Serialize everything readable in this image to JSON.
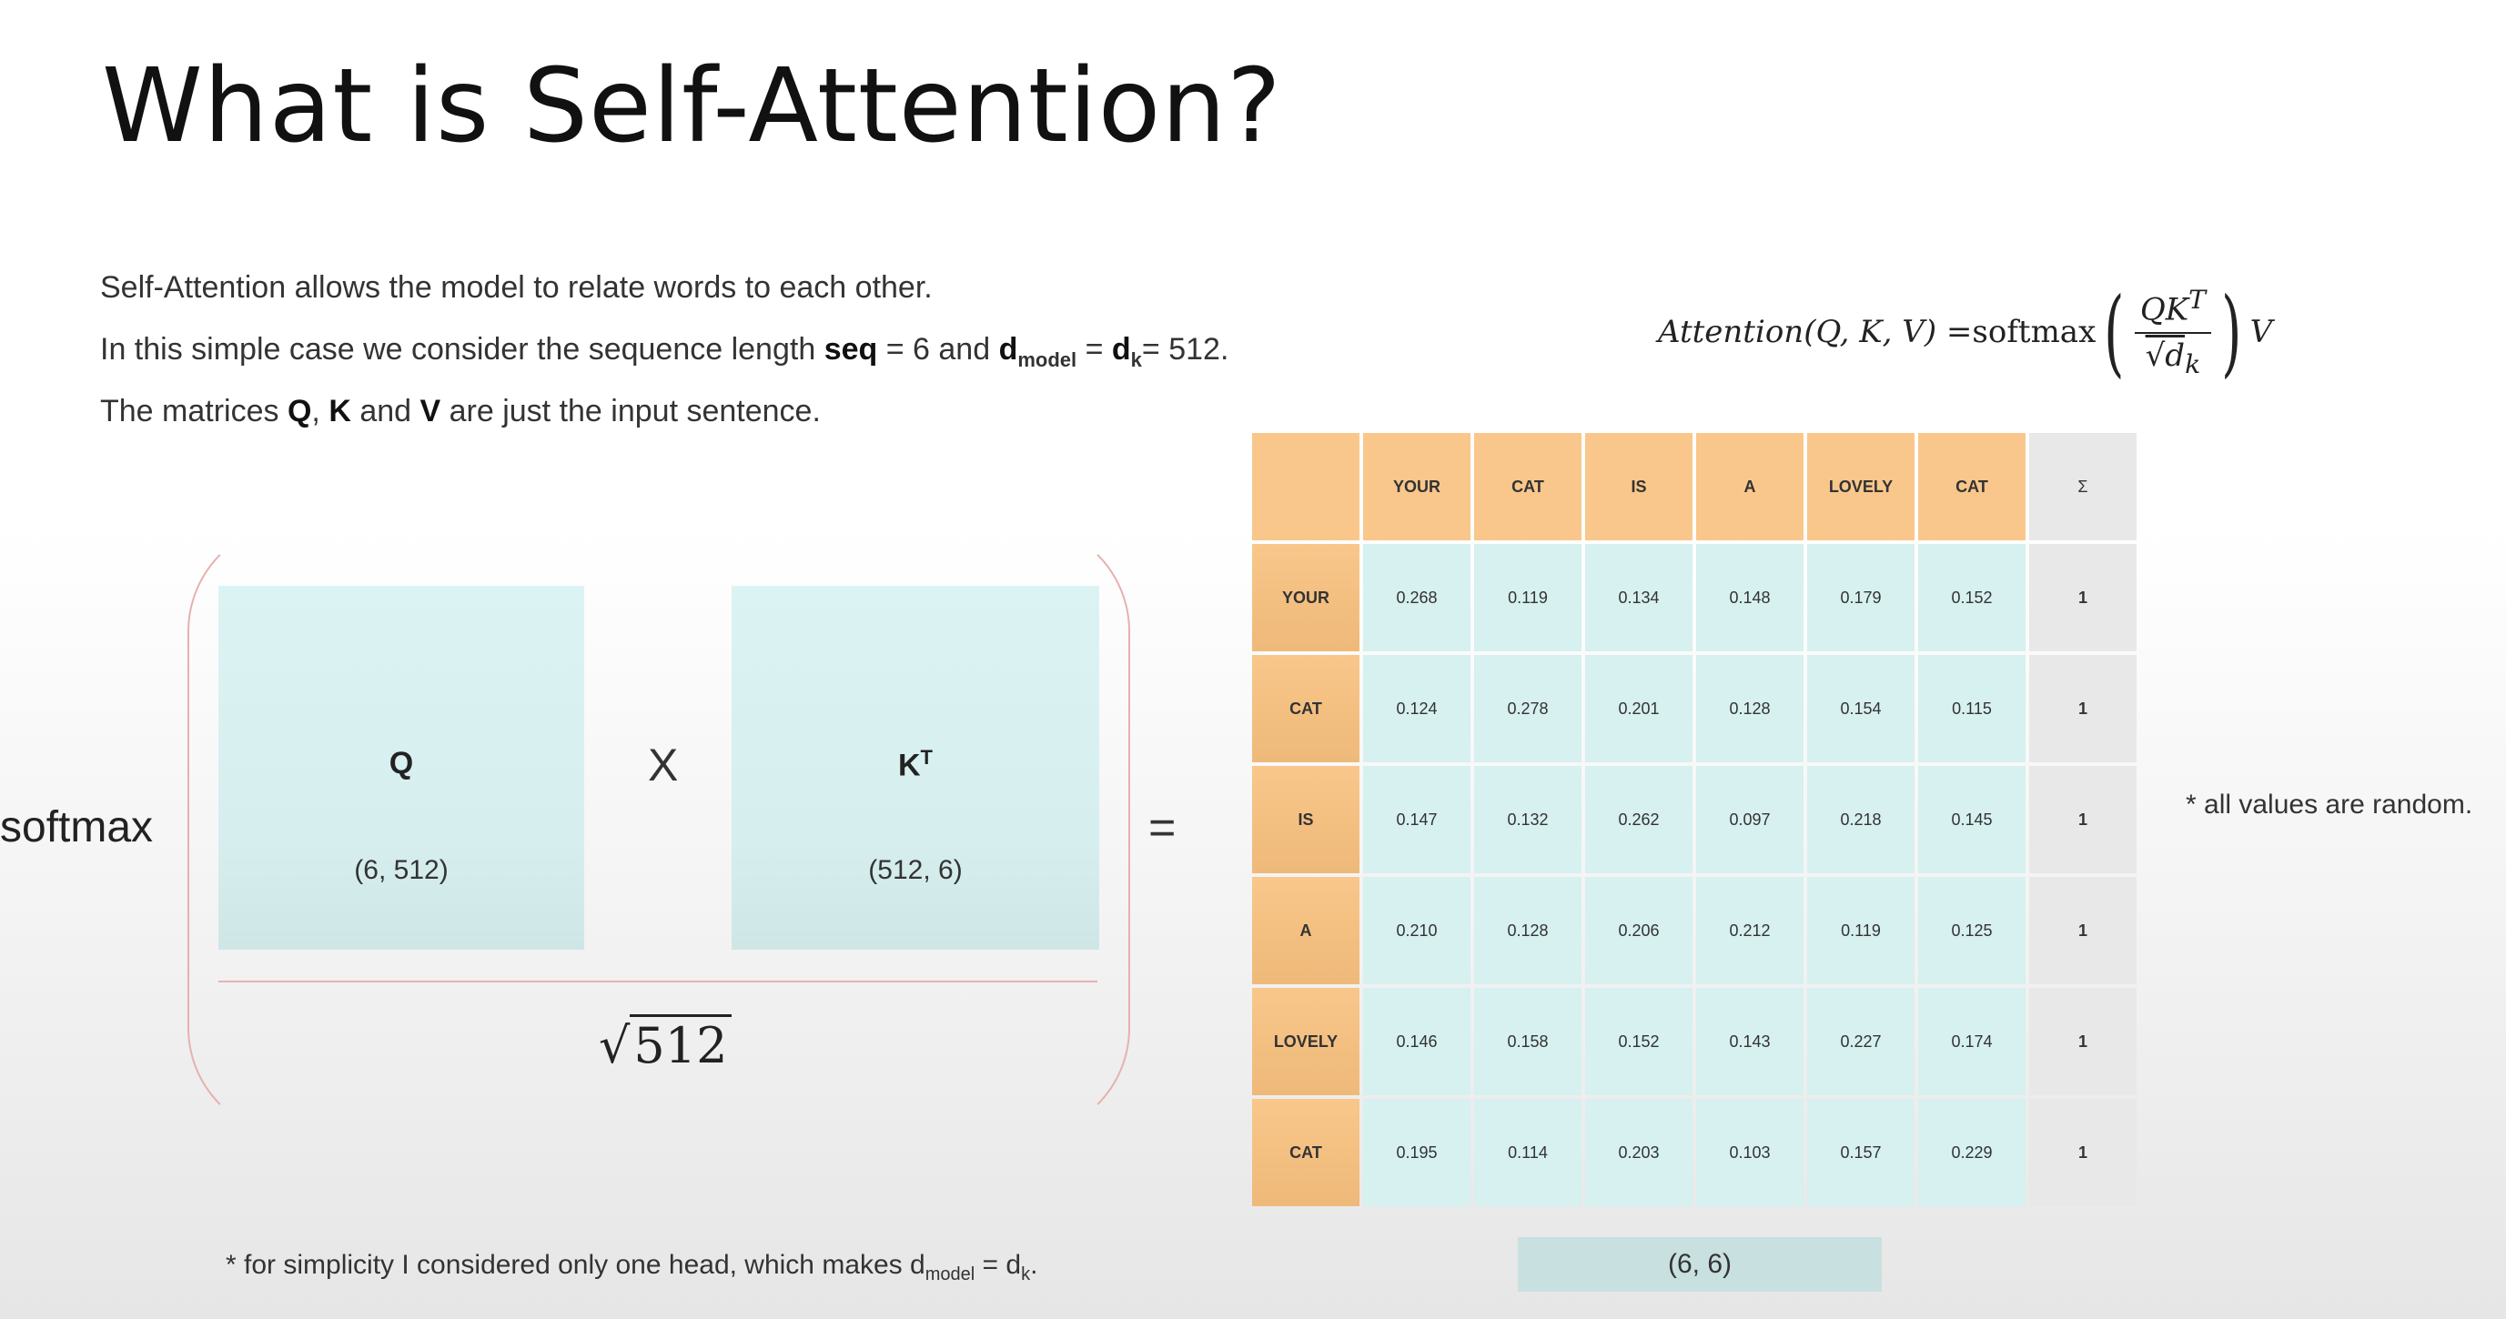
{
  "title": "What is Self-Attention?",
  "intro": {
    "line1": "Self-Attention allows the model to relate words to each other.",
    "line2_a": "In this simple case we consider the sequence length ",
    "line2_seq": "seq",
    "line2_b": " = 6 and ",
    "line2_d": "d",
    "line2_model_sub": "model",
    "line2_c": " = ",
    "line2_dk": "d",
    "line2_k_sub": "k",
    "line2_d_val": "= 512.",
    "line3_a": "The matrices ",
    "line3_q": "Q",
    "line3_comma": ", ",
    "line3_k": "K",
    "line3_and": " and ",
    "line3_v": "V",
    "line3_b": " are just the input sentence."
  },
  "formula": {
    "lhs": "Attention(Q, K, V) = ",
    "softmax": "softmax",
    "numerator": "QK",
    "numerator_sup": "T",
    "denominator": "√d",
    "denominator_sub": "k",
    "v": "V"
  },
  "diagram": {
    "softmax_label": "softmax",
    "q_label": "Q",
    "q_dim": "(6, 512)",
    "times": "X",
    "k_label": "K",
    "k_sup": "T",
    "k_dim": "(512, 6)",
    "sqrt_symbol": "√",
    "sqrt_value": "512",
    "equals": "="
  },
  "table": {
    "columns": [
      "YOUR",
      "CAT",
      "IS",
      "A",
      "LOVELY",
      "CAT"
    ],
    "sum_header": "Σ",
    "rows": [
      {
        "label": "YOUR",
        "values": [
          "0.268",
          "0.119",
          "0.134",
          "0.148",
          "0.179",
          "0.152"
        ],
        "sum": "1"
      },
      {
        "label": "CAT",
        "values": [
          "0.124",
          "0.278",
          "0.201",
          "0.128",
          "0.154",
          "0.115"
        ],
        "sum": "1"
      },
      {
        "label": "IS",
        "values": [
          "0.147",
          "0.132",
          "0.262",
          "0.097",
          "0.218",
          "0.145"
        ],
        "sum": "1"
      },
      {
        "label": "A",
        "values": [
          "0.210",
          "0.128",
          "0.206",
          "0.212",
          "0.119",
          "0.125"
        ],
        "sum": "1"
      },
      {
        "label": "LOVELY",
        "values": [
          "0.146",
          "0.158",
          "0.152",
          "0.143",
          "0.227",
          "0.174"
        ],
        "sum": "1"
      },
      {
        "label": "CAT",
        "values": [
          "0.195",
          "0.114",
          "0.203",
          "0.103",
          "0.157",
          "0.229"
        ],
        "sum": "1"
      }
    ],
    "shape": "(6, 6)"
  },
  "notes": {
    "random": "* all values are random.",
    "head_a": "* for simplicity I considered only one head, which makes d",
    "head_sub1": "model",
    "head_b": " = d",
    "head_sub2": "k",
    "head_c": "."
  },
  "colors": {
    "header": "#f9c78b",
    "cell": "#d7f0f0",
    "sum": "#e8e8e8",
    "bracket": "#e7b0b0"
  }
}
